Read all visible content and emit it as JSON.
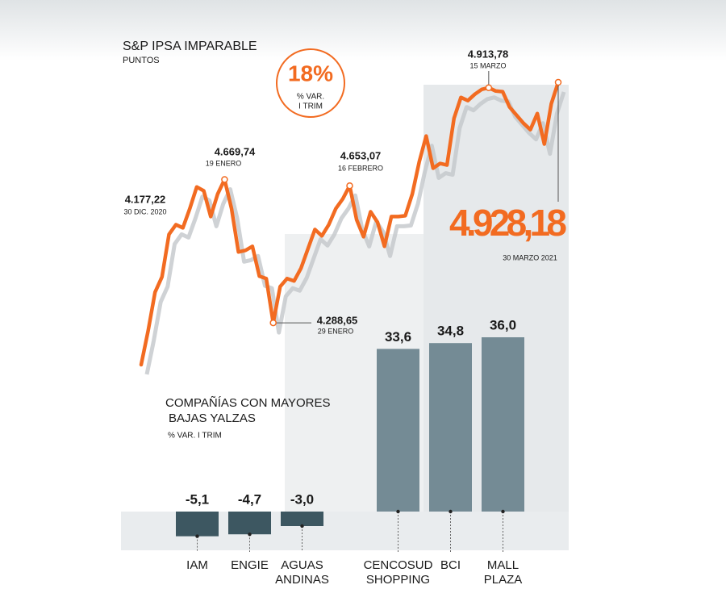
{
  "chart_data": [
    {
      "type": "line",
      "title": "S&P IPSA IMPARABLE",
      "subtitle": "PUNTOS",
      "badge": {
        "label": "18%",
        "lines": [
          "% VAR.",
          "I TRIM"
        ]
      },
      "color": "#f26b21",
      "values": [
        4177.22,
        4267.1,
        4369.9,
        4410.6,
        4524.0,
        4549.7,
        4541.2,
        4592.5,
        4650.0,
        4639.6,
        4571.1,
        4631.1,
        4669.74,
        4592.5,
        4476.9,
        4481.2,
        4491.9,
        4412.7,
        4406.3,
        4288.65,
        4384.9,
        4406.3,
        4399.9,
        4434.1,
        4485.5,
        4536.9,
        4519.8,
        4549.7,
        4592.5,
        4618.2,
        4653.07,
        4562.5,
        4517.6,
        4584.0,
        4556.1,
        4491.9,
        4571.1,
        4571.1,
        4573.4,
        4631.1,
        4716.7,
        4785.2,
        4699.6,
        4712.4,
        4708.1,
        4832.3,
        4888.0,
        4879.4,
        4896.5,
        4909.4,
        4913.78,
        4905.1,
        4903.2,
        4862.3,
        4840.9,
        4819.4,
        4802.3,
        4845.2,
        4763.8,
        4870.8,
        4928.18
      ],
      "annotations": [
        {
          "value": 4177.22,
          "label": "4.177,22",
          "date": "30 DIC. 2020"
        },
        {
          "value": 4669.74,
          "label": "4.669,74",
          "date": "19 ENERO"
        },
        {
          "value": 4288.65,
          "label": "4.288,65",
          "date": "29 ENERO"
        },
        {
          "value": 4653.07,
          "label": "4.653,07",
          "date": "16 FEBRERO"
        },
        {
          "value": 4913.78,
          "label": "4.913,78",
          "date": "15 MARZO"
        },
        {
          "value": 4928.18,
          "label": "4.928,18",
          "date": "30 MARZO 2021"
        }
      ]
    },
    {
      "type": "bar",
      "title": [
        "COMPAÑÍAS CON MAYORES",
        "BAJAS YALZAS"
      ],
      "subtitle": "% VAR. I TRIM",
      "categories": [
        "IAM",
        "ENGIE",
        "AGUAS ANDINAS",
        "CENCOSUD SHOPPING",
        "BCI",
        "MALL PLAZA"
      ],
      "values": [
        -5.1,
        -4.7,
        -3.0,
        33.6,
        34.8,
        36.0
      ],
      "value_labels": [
        "-5,1",
        "-4,7",
        "-3,0",
        "33,6",
        "34,8",
        "36,0"
      ],
      "color": "#748b95",
      "negative_color": "#3d5761"
    }
  ]
}
